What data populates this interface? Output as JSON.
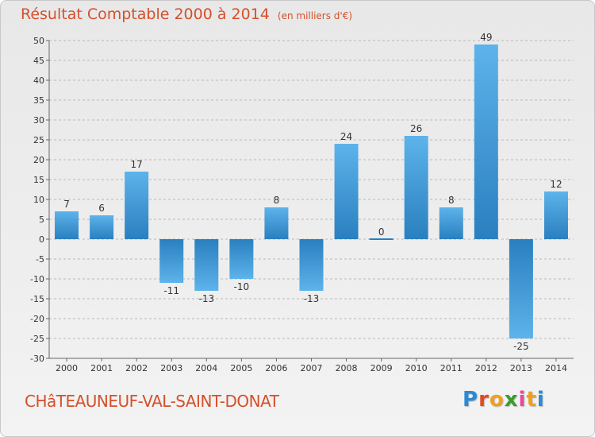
{
  "chart_data": {
    "type": "bar",
    "title": "Résultat Comptable 2000 à 2014",
    "unit_note": "(en milliers d'€)",
    "categories": [
      "2000",
      "2001",
      "2002",
      "2003",
      "2004",
      "2005",
      "2006",
      "2007",
      "2008",
      "2009",
      "2010",
      "2011",
      "2012",
      "2013",
      "2014"
    ],
    "values": [
      7,
      6,
      17,
      -11,
      -13,
      -10,
      8,
      -13,
      24,
      0,
      26,
      8,
      49,
      -25,
      12
    ],
    "ylim": [
      -30,
      50
    ],
    "yticks": [
      50,
      45,
      40,
      35,
      30,
      25,
      20,
      15,
      10,
      5,
      0,
      -5,
      -10,
      -15,
      -20,
      -25,
      -30
    ],
    "xlabel": "",
    "ylabel": "",
    "grid": "horizontal dashed",
    "bar_color": "#3a9ad9"
  },
  "footer": {
    "commune": "CHâTEAUNEUF-VAL-SAINT-DONAT",
    "brand_letters": [
      "P",
      "r",
      "o",
      "x",
      "i",
      "t",
      "i"
    ],
    "brand_colors": [
      "#2a8ad4",
      "#e04a1f",
      "#f0a020",
      "#3a9d2a",
      "#e84a9a",
      "#f0a020",
      "#2a8ad4"
    ]
  }
}
